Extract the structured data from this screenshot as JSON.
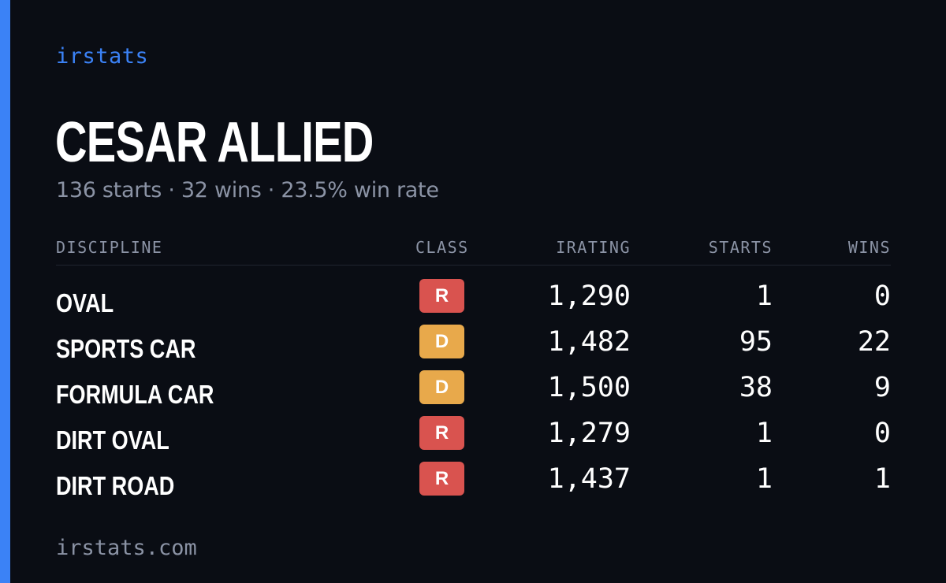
{
  "colors": {
    "background": "#0a0d14",
    "accent": "#3b82f6",
    "muted_text": "#8b93a5",
    "class_R": "#d9534f",
    "class_D": "#e8a94b"
  },
  "brand": "irstats",
  "driver": {
    "name": "CESAR ALLIED",
    "summary": "136 starts · 32 wins · 23.5% win rate"
  },
  "table": {
    "headers": {
      "discipline": "DISCIPLINE",
      "class": "CLASS",
      "irating": "IRATING",
      "starts": "STARTS",
      "wins": "WINS"
    },
    "rows": [
      {
        "discipline": "OVAL",
        "class": "R",
        "class_color": "#d9534f",
        "irating": "1,290",
        "starts": "1",
        "wins": "0"
      },
      {
        "discipline": "SPORTS CAR",
        "class": "D",
        "class_color": "#e8a94b",
        "irating": "1,482",
        "starts": "95",
        "wins": "22"
      },
      {
        "discipline": "FORMULA CAR",
        "class": "D",
        "class_color": "#e8a94b",
        "irating": "1,500",
        "starts": "38",
        "wins": "9"
      },
      {
        "discipline": "DIRT OVAL",
        "class": "R",
        "class_color": "#d9534f",
        "irating": "1,279",
        "starts": "1",
        "wins": "0"
      },
      {
        "discipline": "DIRT ROAD",
        "class": "R",
        "class_color": "#d9534f",
        "irating": "1,437",
        "starts": "1",
        "wins": "1"
      }
    ]
  },
  "footer": "irstats.com"
}
